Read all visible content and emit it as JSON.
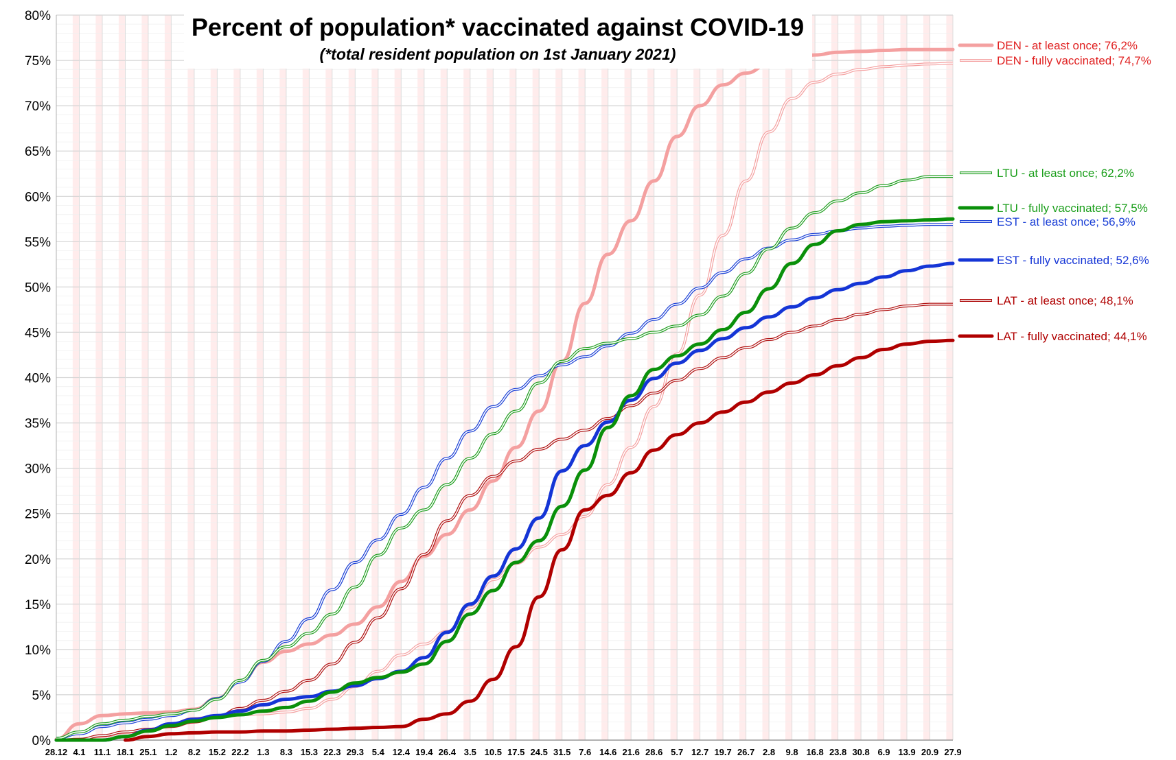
{
  "chart_data": {
    "type": "line",
    "title": "Percent of population* vaccinated against COVID-19",
    "subtitle": "(*total resident population on 1st January 2021)",
    "xlabel": "",
    "ylabel": "",
    "ylim": [
      0,
      80
    ],
    "grid": true,
    "y_ticks": [
      "0%",
      "5%",
      "10%",
      "15%",
      "20%",
      "25%",
      "30%",
      "35%",
      "40%",
      "45%",
      "50%",
      "55%",
      "60%",
      "65%",
      "70%",
      "75%",
      "80%"
    ],
    "categories": [
      "28.12",
      "4.1",
      "11.1",
      "18.1",
      "25.1",
      "1.2",
      "8.2",
      "15.2",
      "22.2",
      "1.3",
      "8.3",
      "15.3",
      "22.3",
      "29.3",
      "5.4",
      "12.4",
      "19.4",
      "26.4",
      "3.5",
      "10.5",
      "17.5",
      "24.5",
      "31.5",
      "7.6",
      "14.6",
      "21.6",
      "28.6",
      "5.7",
      "12.7",
      "19.7",
      "26.7",
      "2.8",
      "9.8",
      "16.8",
      "23.8",
      "30.8",
      "6.9",
      "13.9",
      "20.9",
      "27.9"
    ],
    "series": [
      {
        "name": "DEN - at least once",
        "end_label": "76,2%",
        "color": "#f4a0a0",
        "style": "thick",
        "values": [
          0.1,
          1.8,
          2.7,
          2.9,
          3.0,
          3.1,
          3.4,
          4.6,
          6.5,
          8.6,
          9.8,
          10.6,
          11.6,
          12.8,
          14.7,
          17.5,
          20.3,
          22.7,
          25.4,
          28.6,
          32.3,
          36.3,
          41.8,
          48.2,
          53.6,
          57.3,
          61.7,
          66.6,
          70.0,
          72.3,
          73.6,
          74.6,
          75.2,
          75.6,
          75.9,
          76.0,
          76.1,
          76.2,
          76.2,
          76.2
        ]
      },
      {
        "name": "DEN - fully vaccinated",
        "end_label": "74,7%",
        "color": "#f4a0a0",
        "style": "double",
        "values": [
          0.0,
          0.0,
          0.2,
          0.6,
          1.1,
          1.8,
          2.4,
          2.6,
          2.8,
          2.9,
          3.1,
          3.5,
          4.5,
          5.9,
          7.6,
          9.4,
          10.6,
          12.0,
          14.6,
          17.7,
          19.5,
          21.3,
          22.7,
          24.7,
          28.2,
          32.3,
          36.8,
          42.6,
          49.1,
          55.7,
          61.7,
          67.1,
          70.8,
          72.6,
          73.5,
          74.0,
          74.3,
          74.5,
          74.6,
          74.7
        ]
      },
      {
        "name": "LTU - at least once",
        "end_label": "62,2%",
        "color": "#1f9e1f",
        "style": "double",
        "values": [
          0.2,
          0.9,
          1.8,
          2.2,
          2.6,
          2.9,
          3.3,
          4.5,
          6.6,
          8.8,
          10.3,
          11.8,
          13.9,
          16.9,
          20.4,
          23.4,
          25.4,
          28.2,
          31.1,
          33.8,
          36.3,
          39.4,
          41.8,
          43.2,
          43.8,
          44.3,
          45.0,
          45.7,
          46.9,
          49.0,
          51.5,
          54.2,
          56.5,
          58.2,
          59.5,
          60.4,
          61.2,
          61.8,
          62.2,
          62.2
        ]
      },
      {
        "name": "LTU - fully vaccinated",
        "end_label": "57,5%",
        "color": "#0a900a",
        "style": "thick",
        "values": [
          0.0,
          0.0,
          0.0,
          0.4,
          1.0,
          1.6,
          2.1,
          2.5,
          2.8,
          3.2,
          3.6,
          4.3,
          5.3,
          6.3,
          6.9,
          7.5,
          8.4,
          10.9,
          13.9,
          16.5,
          19.6,
          22.0,
          25.8,
          29.8,
          34.5,
          38.0,
          40.9,
          42.4,
          43.7,
          45.3,
          47.2,
          49.8,
          52.6,
          54.7,
          56.2,
          56.9,
          57.2,
          57.3,
          57.4,
          57.5
        ]
      },
      {
        "name": "EST - at least once",
        "end_label": "56,9%",
        "color": "#1a3fd6",
        "style": "double",
        "values": [
          0.2,
          0.7,
          1.5,
          1.9,
          2.3,
          2.7,
          3.3,
          4.6,
          6.4,
          8.7,
          10.9,
          13.4,
          16.6,
          19.6,
          22.1,
          24.9,
          27.9,
          31.1,
          34.1,
          36.8,
          38.7,
          40.2,
          41.4,
          42.3,
          43.5,
          44.9,
          46.4,
          48.1,
          49.9,
          51.6,
          53.1,
          54.3,
          55.2,
          55.8,
          56.2,
          56.5,
          56.7,
          56.8,
          56.9,
          56.9
        ]
      },
      {
        "name": "EST - fully vaccinated",
        "end_label": "52,6%",
        "color": "#1535d6",
        "style": "thick",
        "values": [
          0.0,
          0.0,
          0.0,
          0.4,
          1.1,
          1.8,
          2.3,
          2.7,
          3.2,
          3.9,
          4.5,
          4.8,
          5.4,
          6.0,
          6.8,
          7.6,
          9.1,
          11.9,
          15.0,
          18.1,
          21.1,
          24.5,
          29.7,
          32.5,
          35.1,
          37.5,
          39.9,
          41.6,
          43.0,
          44.3,
          45.5,
          46.7,
          47.8,
          48.8,
          49.7,
          50.4,
          51.1,
          51.8,
          52.3,
          52.6
        ]
      },
      {
        "name": "LAT - at least once",
        "end_label": "48,1%",
        "color": "#b01010",
        "style": "double",
        "values": [
          0.0,
          0.1,
          0.5,
          0.9,
          1.2,
          1.5,
          2.0,
          2.6,
          3.5,
          4.4,
          5.4,
          6.6,
          8.4,
          10.8,
          13.5,
          16.7,
          20.5,
          24.2,
          27.0,
          29.1,
          30.8,
          32.1,
          33.2,
          34.2,
          35.5,
          36.9,
          38.3,
          39.7,
          41.0,
          42.2,
          43.3,
          44.2,
          45.0,
          45.7,
          46.4,
          47.0,
          47.5,
          47.9,
          48.1,
          48.1
        ]
      },
      {
        "name": "LAT - fully vaccinated",
        "end_label": "44,1%",
        "color": "#b00000",
        "style": "thick",
        "values": [
          null,
          null,
          null,
          0.0,
          0.4,
          0.7,
          0.8,
          0.9,
          0.9,
          1.0,
          1.0,
          1.1,
          1.2,
          1.3,
          1.4,
          1.5,
          2.3,
          2.9,
          4.3,
          6.7,
          10.3,
          15.8,
          21.0,
          25.4,
          27.0,
          29.5,
          32.0,
          33.7,
          35.0,
          36.2,
          37.3,
          38.4,
          39.4,
          40.3,
          41.3,
          42.2,
          43.1,
          43.7,
          44.0,
          44.1
        ]
      }
    ]
  }
}
